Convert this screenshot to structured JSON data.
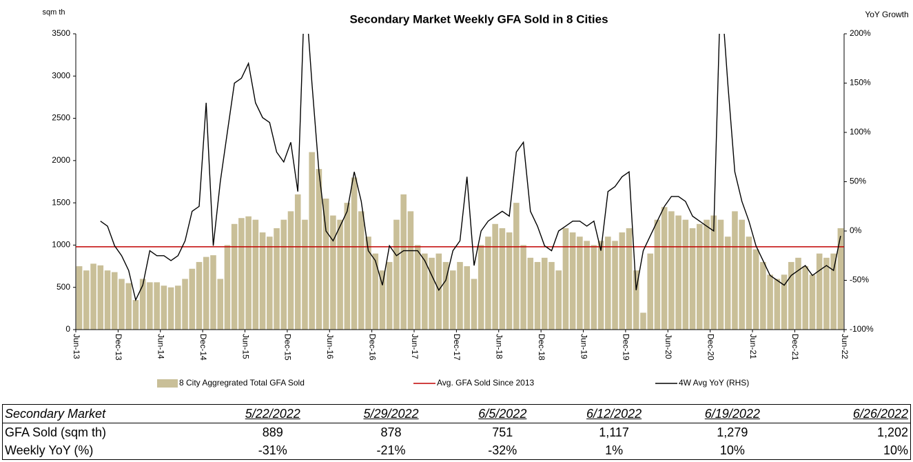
{
  "chart_data": {
    "type": "bar_line",
    "title": "Secondary Market Weekly GFA Sold in 8 Cities",
    "y_label": "sqm th",
    "y2_label": "YoY Growth",
    "categories": [
      "Jun-13",
      null,
      null,
      null,
      null,
      null,
      "Dec-13",
      null,
      null,
      null,
      null,
      null,
      "Jun-14",
      null,
      null,
      null,
      null,
      null,
      "Dec-14",
      null,
      null,
      null,
      null,
      null,
      "Jun-15",
      null,
      null,
      null,
      null,
      null,
      "Dec-15",
      null,
      null,
      null,
      null,
      null,
      "Jun-16",
      null,
      null,
      null,
      null,
      null,
      "Dec-16",
      null,
      null,
      null,
      null,
      null,
      "Jun-17",
      null,
      null,
      null,
      null,
      null,
      "Dec-17",
      null,
      null,
      null,
      null,
      null,
      "Jun-18",
      null,
      null,
      null,
      null,
      null,
      "Dec-18",
      null,
      null,
      null,
      null,
      null,
      "Jun-19",
      null,
      null,
      null,
      null,
      null,
      "Dec-19",
      null,
      null,
      null,
      null,
      null,
      "Jun-20",
      null,
      null,
      null,
      null,
      null,
      "Dec-20",
      null,
      null,
      null,
      null,
      null,
      "Jun-21",
      null,
      null,
      null,
      null,
      null,
      "Dec-21",
      null,
      null,
      null,
      null,
      null,
      "Jun-22"
    ],
    "series": [
      {
        "name": "8 City Aggregrated Total GFA Sold",
        "color": "#c9bf98",
        "values": [
          750,
          700,
          780,
          760,
          700,
          680,
          600,
          550,
          350,
          600,
          560,
          560,
          520,
          500,
          520,
          600,
          720,
          800,
          860,
          880,
          600,
          1000,
          1250,
          1320,
          1340,
          1300,
          1150,
          1100,
          1200,
          1300,
          1400,
          1600,
          1300,
          2100,
          1900,
          1550,
          1350,
          1300,
          1500,
          1800,
          1400,
          1100,
          900,
          700,
          800,
          1300,
          1600,
          1400,
          1000,
          900,
          850,
          900,
          800,
          700,
          800,
          750,
          600,
          1000,
          1100,
          1250,
          1200,
          1150,
          1500,
          1000,
          850,
          800,
          850,
          800,
          700,
          1200,
          1150,
          1100,
          1050,
          1000,
          1050,
          1100,
          1050,
          1150,
          1200,
          700,
          200,
          900,
          1300,
          1450,
          1400,
          1350,
          1300,
          1200,
          1250,
          1300,
          1350,
          1300,
          1100,
          1400,
          1300,
          1100,
          950,
          800,
          650,
          600,
          650,
          800,
          850,
          750,
          650,
          900,
          850,
          900,
          1200
        ]
      },
      {
        "name": "Avg. GFA Sold Since 2013",
        "color": "#c00000",
        "value": 980
      },
      {
        "name": "4W Avg YoY (RHS)",
        "color": "#000000",
        "axis": "y2",
        "values": [
          null,
          null,
          null,
          10,
          5,
          -15,
          -25,
          -40,
          -70,
          -55,
          -20,
          -25,
          -25,
          -30,
          -25,
          -10,
          20,
          25,
          130,
          -15,
          50,
          100,
          150,
          155,
          170,
          130,
          115,
          110,
          80,
          70,
          90,
          40,
          250,
          150,
          60,
          0,
          -10,
          5,
          20,
          60,
          30,
          -20,
          -30,
          -55,
          -15,
          -25,
          -20,
          -20,
          -20,
          -30,
          -45,
          -60,
          -50,
          -20,
          -10,
          55,
          -35,
          0,
          10,
          15,
          20,
          15,
          80,
          90,
          20,
          5,
          -15,
          -20,
          0,
          5,
          10,
          10,
          5,
          10,
          -20,
          40,
          45,
          55,
          60,
          -60,
          -20,
          -5,
          10,
          25,
          35,
          35,
          30,
          15,
          10,
          5,
          0,
          250,
          150,
          60,
          30,
          10,
          -15,
          -30,
          -45,
          -50,
          -55,
          -45,
          -40,
          -35,
          -45,
          -40,
          -35,
          -40,
          -5
        ]
      }
    ],
    "ylim": [
      0,
      3500
    ],
    "yticks": [
      0,
      500,
      1000,
      1500,
      2000,
      2500,
      3000,
      3500
    ],
    "y2lim": [
      -100,
      200
    ],
    "y2ticks": [
      {
        "value": -100,
        "label": "-100%"
      },
      {
        "value": -50,
        "label": "-50%"
      },
      {
        "value": 0,
        "label": "0%"
      },
      {
        "value": 50,
        "label": "50%"
      },
      {
        "value": 100,
        "label": "100%"
      },
      {
        "value": 150,
        "label": "150%"
      },
      {
        "value": 200,
        "label": "200%"
      }
    ]
  },
  "table": {
    "header": [
      "Secondary Market",
      "5/22/2022",
      "5/29/2022",
      "6/5/2022",
      "6/12/2022",
      "6/19/2022",
      "6/26/2022"
    ],
    "rows": [
      [
        "GFA Sold (sqm th)",
        "889",
        "878",
        "751",
        "1,117",
        "1,279",
        "1,202"
      ],
      [
        "Weekly YoY (%)",
        "-31%",
        "-21%",
        "-32%",
        "1%",
        "10%",
        "10%"
      ]
    ]
  }
}
